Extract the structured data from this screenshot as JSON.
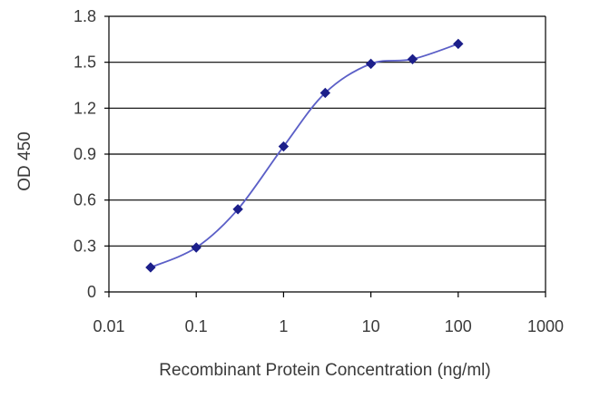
{
  "chart_data": {
    "type": "line",
    "title": "",
    "xlabel": "Recombinant Protein Concentration (ng/ml)",
    "ylabel": "OD 450",
    "x_scale": "log",
    "xlim": [
      0.01,
      1000
    ],
    "ylim": [
      0,
      1.8
    ],
    "x_ticks": [
      "0.01",
      "0.1",
      "1",
      "10",
      "100",
      "1000"
    ],
    "y_ticks": [
      "0",
      "0.3",
      "0.6",
      "0.9",
      "1.2",
      "1.5",
      "1.8"
    ],
    "grid": "horizontal",
    "legend": "none",
    "series": [
      {
        "x": [
          0.03,
          0.1,
          0.3,
          1,
          3,
          10,
          30,
          100
        ],
        "y": [
          0.16,
          0.29,
          0.54,
          0.95,
          1.3,
          1.49,
          1.52,
          1.62
        ]
      }
    ],
    "colors": {
      "line": "#5b5fc7",
      "marker": "#1c1f8a",
      "grid": "#000000",
      "axis": "#000000"
    }
  }
}
